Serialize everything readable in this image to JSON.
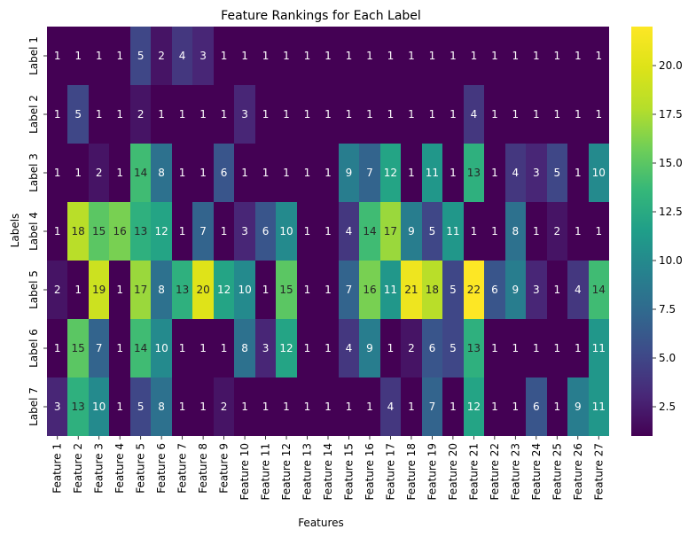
{
  "chart_data": {
    "type": "heatmap",
    "title": "Feature Rankings for Each Label",
    "xlabel": "Features",
    "ylabel": "Labels",
    "x_categories": [
      "Feature 1",
      "Feature 2",
      "Feature 3",
      "Feature 4",
      "Feature 5",
      "Feature 6",
      "Feature 7",
      "Feature 8",
      "Feature 9",
      "Feature 10",
      "Feature 11",
      "Feature 12",
      "Feature 13",
      "Feature 14",
      "Feature 15",
      "Feature 16",
      "Feature 17",
      "Feature 18",
      "Feature 19",
      "Feature 20",
      "Feature 21",
      "Feature 22",
      "Feature 23",
      "Feature 24",
      "Feature 25",
      "Feature 26",
      "Feature 27"
    ],
    "y_categories": [
      "Label 1",
      "Label 2",
      "Label 3",
      "Label 4",
      "Label 5",
      "Label 6",
      "Label 7"
    ],
    "values": [
      [
        1,
        1,
        1,
        1,
        5,
        2,
        4,
        3,
        1,
        1,
        1,
        1,
        1,
        1,
        1,
        1,
        1,
        1,
        1,
        1,
        1,
        1,
        1,
        1,
        1,
        1,
        1
      ],
      [
        1,
        5,
        1,
        1,
        2,
        1,
        1,
        1,
        1,
        3,
        1,
        1,
        1,
        1,
        1,
        1,
        1,
        1,
        1,
        1,
        4,
        1,
        1,
        1,
        1,
        1,
        1
      ],
      [
        1,
        1,
        2,
        1,
        14,
        8,
        1,
        1,
        6,
        1,
        1,
        1,
        1,
        1,
        9,
        7,
        12,
        1,
        11,
        1,
        13,
        1,
        4,
        3,
        5,
        1,
        10
      ],
      [
        1,
        18,
        15,
        16,
        13,
        12,
        1,
        7,
        1,
        3,
        6,
        10,
        1,
        1,
        4,
        14,
        17,
        9,
        5,
        11,
        1,
        1,
        8,
        1,
        2,
        1,
        1
      ],
      [
        2,
        1,
        19,
        1,
        17,
        8,
        13,
        20,
        12,
        10,
        1,
        15,
        1,
        1,
        7,
        16,
        11,
        21,
        18,
        5,
        22,
        6,
        9,
        3,
        1,
        4,
        14
      ],
      [
        1,
        15,
        7,
        1,
        14,
        10,
        1,
        1,
        1,
        8,
        3,
        12,
        1,
        1,
        4,
        9,
        1,
        2,
        6,
        5,
        13,
        1,
        1,
        1,
        1,
        1,
        11
      ],
      [
        3,
        13,
        10,
        1,
        5,
        8,
        1,
        1,
        2,
        1,
        1,
        1,
        1,
        1,
        1,
        1,
        4,
        1,
        7,
        1,
        12,
        1,
        1,
        6,
        1,
        9,
        11
      ]
    ],
    "colormap": "viridis",
    "vmin": 1,
    "vmax": 22,
    "colorbar_ticks": [
      "2.5",
      "5.0",
      "7.5",
      "10.0",
      "12.5",
      "15.0",
      "17.5",
      "20.0"
    ],
    "colorbar_tick_values": [
      2.5,
      5.0,
      7.5,
      10.0,
      12.5,
      15.0,
      17.5,
      20.0
    ],
    "annotations": true,
    "grid": false,
    "legend": "colorbar-right"
  }
}
